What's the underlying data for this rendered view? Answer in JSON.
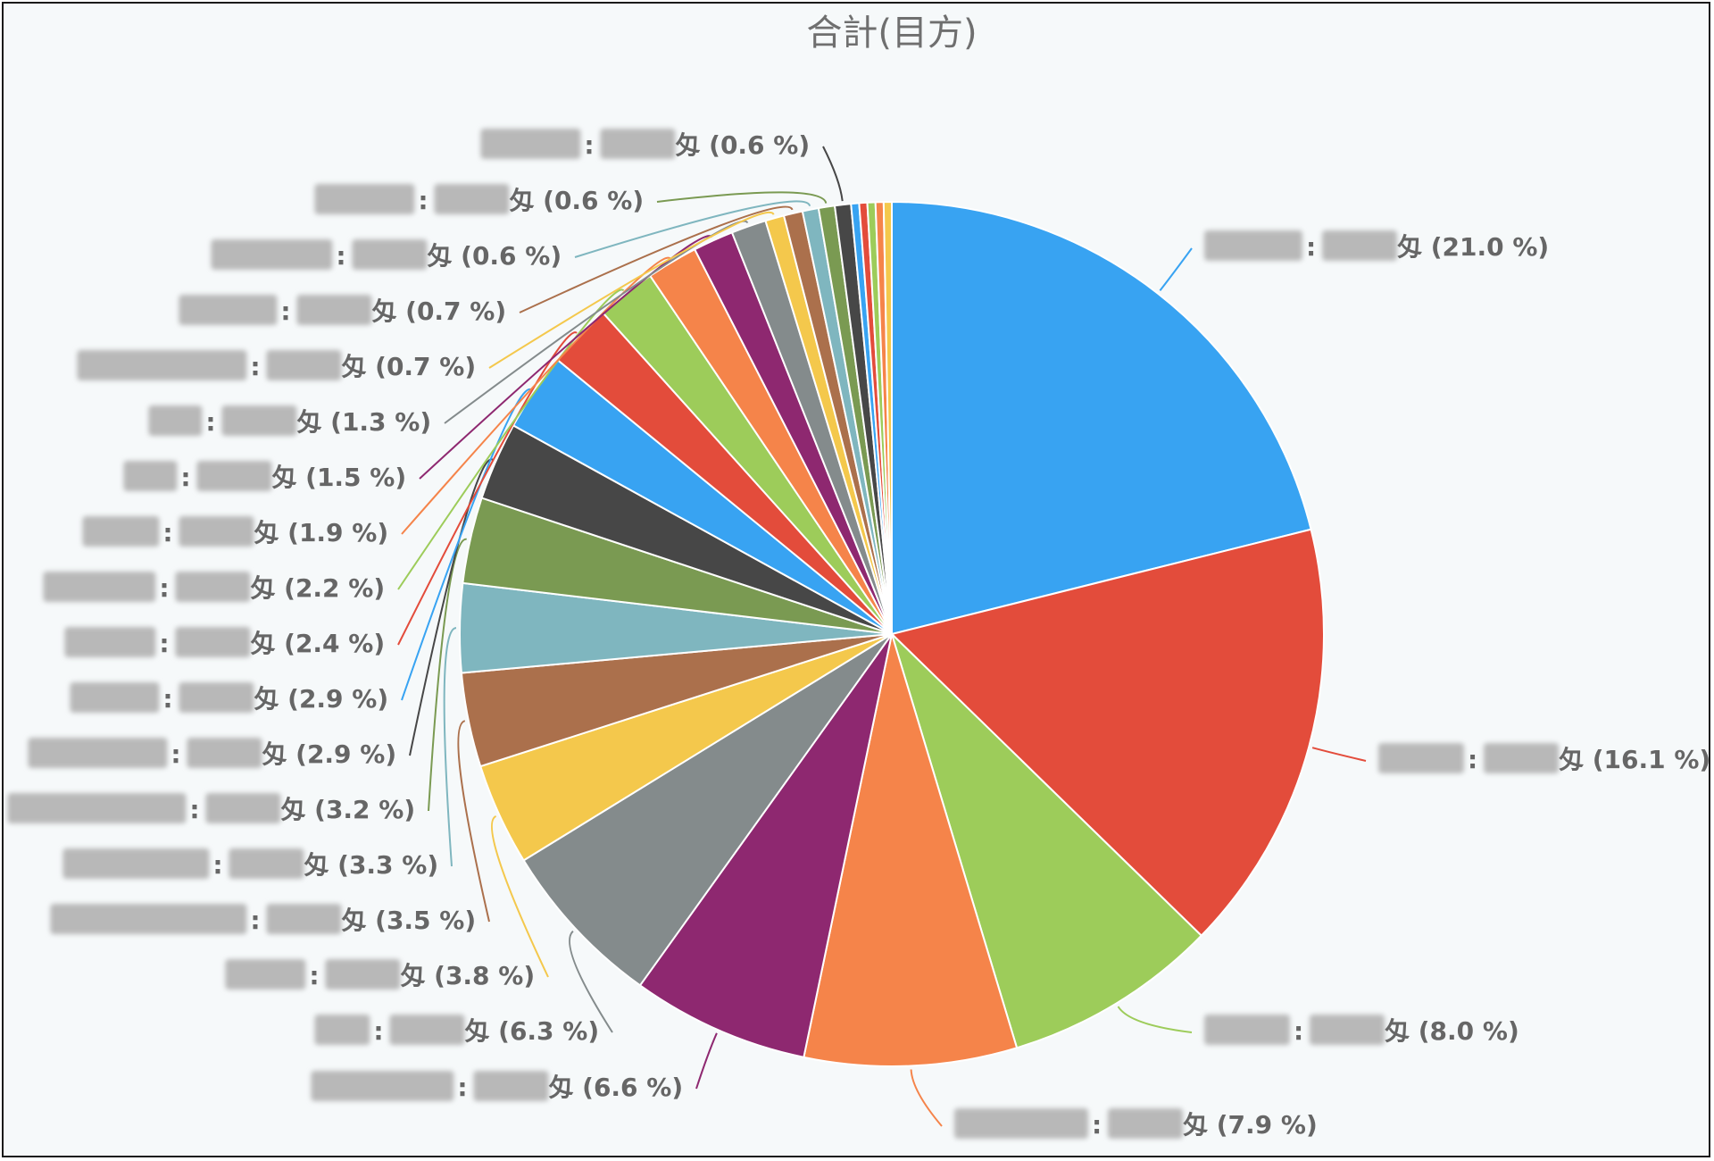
{
  "chart_data": {
    "type": "pie",
    "title": "合計(目方)",
    "unit": "匁",
    "label_separator": ":",
    "names_redacted": true,
    "slices": [
      {
        "percent": 21.0,
        "label": "(21.0 %)",
        "color": "#38a3f2"
      },
      {
        "percent": 16.1,
        "label": "(16.1 %)",
        "color": "#e34c3b"
      },
      {
        "percent": 8.0,
        "label": "(8.0 %)",
        "color": "#9dcc5a"
      },
      {
        "percent": 7.9,
        "label": "(7.9 %)",
        "color": "#f5844a"
      },
      {
        "percent": 6.6,
        "label": "(6.6 %)",
        "color": "#8e2870"
      },
      {
        "percent": 6.3,
        "label": "(6.3 %)",
        "color": "#848b8c"
      },
      {
        "percent": 3.8,
        "label": "(3.8 %)",
        "color": "#f4c84c"
      },
      {
        "percent": 3.5,
        "label": "(3.5 %)",
        "color": "#ab704c"
      },
      {
        "percent": 3.3,
        "label": "(3.3 %)",
        "color": "#7fb6bf"
      },
      {
        "percent": 3.2,
        "label": "(3.2 %)",
        "color": "#7a9a52"
      },
      {
        "percent": 2.9,
        "label": "(2.9 %)",
        "color": "#474747"
      },
      {
        "percent": 2.9,
        "label": "(2.9 %)",
        "color": "#38a3f2"
      },
      {
        "percent": 2.4,
        "label": "(2.4 %)",
        "color": "#e34c3b"
      },
      {
        "percent": 2.2,
        "label": "(2.2 %)",
        "color": "#9dcc5a"
      },
      {
        "percent": 1.9,
        "label": "(1.9 %)",
        "color": "#f5844a"
      },
      {
        "percent": 1.5,
        "label": "(1.5 %)",
        "color": "#8e2870"
      },
      {
        "percent": 1.3,
        "label": "(1.3 %)",
        "color": "#848b8c"
      },
      {
        "percent": 0.7,
        "label": "(0.7 %)",
        "color": "#f4c84c"
      },
      {
        "percent": 0.7,
        "label": "(0.7 %)",
        "color": "#ab704c"
      },
      {
        "percent": 0.6,
        "label": "(0.6 %)",
        "color": "#7fb6bf"
      },
      {
        "percent": 0.6,
        "label": "(0.6 %)",
        "color": "#7a9a52"
      },
      {
        "percent": 0.6,
        "label": "(0.6 %)",
        "color": "#474747"
      },
      {
        "percent": 0.3,
        "label": "",
        "color": "#38a3f2"
      },
      {
        "percent": 0.3,
        "label": "",
        "color": "#e34c3b"
      },
      {
        "percent": 0.3,
        "label": "",
        "color": "#9dcc5a"
      },
      {
        "percent": 0.3,
        "label": "",
        "color": "#f5844a"
      },
      {
        "percent": 0.3,
        "label": "",
        "color": "#f4c84c"
      }
    ]
  }
}
